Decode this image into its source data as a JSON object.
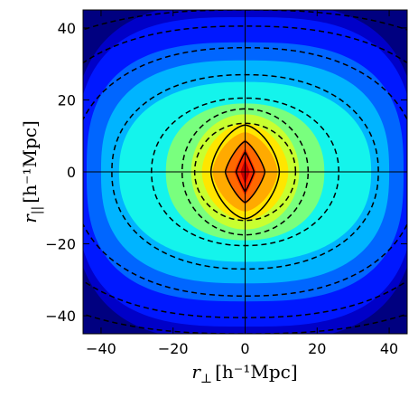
{
  "chart_data": {
    "type": "contour",
    "title": "",
    "x_range": [
      -45,
      45
    ],
    "y_range": [
      -45,
      45
    ],
    "x_ticks": [
      -40,
      -20,
      0,
      20,
      40
    ],
    "y_ticks": [
      -40,
      -20,
      0,
      20,
      40
    ],
    "x_tick_labels": [
      "−40",
      "−20",
      "0",
      "20",
      "40"
    ],
    "y_tick_labels": [
      "−40",
      "−20",
      "0",
      "20",
      "40"
    ],
    "xlabel": {
      "symbol": "r",
      "subscript": "⊥",
      "units": "[h⁻¹Mpc]"
    },
    "ylabel": {
      "symbol": "r",
      "subscript": "||",
      "units": "[h⁻¹Mpc]"
    },
    "filled_levels": [
      {
        "level": 1,
        "color": "#0000c8",
        "x_extent": 48,
        "y_extent": 47,
        "shape_exponent": 3.0
      },
      {
        "level": 2,
        "color": "#0018ff",
        "x_extent": 47,
        "y_extent": 43,
        "shape_exponent": 3.0
      },
      {
        "level": 3,
        "color": "#0066ff",
        "x_extent": 44,
        "y_extent": 36,
        "shape_exponent": 2.8
      },
      {
        "level": 4,
        "color": "#00b4ff",
        "x_extent": 40,
        "y_extent": 31,
        "shape_exponent": 2.6
      },
      {
        "level": 5,
        "color": "#14f4ec",
        "x_extent": 35,
        "y_extent": 25,
        "shape_exponent": 2.3
      },
      {
        "level": 6,
        "color": "#79ff7e",
        "x_extent": 22,
        "y_extent": 19,
        "shape_exponent": 2.2
      },
      {
        "level": 7,
        "color": "#c8ff30",
        "x_extent": 15,
        "y_extent": 16,
        "shape_exponent": 2.0
      },
      {
        "level": 8,
        "color": "#ffe600",
        "x_extent": 12,
        "y_extent": 13.5,
        "shape_exponent": 1.8
      },
      {
        "level": 9,
        "color": "#ffaa00",
        "x_extent": 9,
        "y_extent": 11,
        "shape_exponent": 1.6
      },
      {
        "level": 10,
        "color": "#ff6800",
        "x_extent": 5.5,
        "y_extent": 9,
        "shape_exponent": 1.3
      },
      {
        "level": 11,
        "color": "#ff2a00",
        "x_extent": 3,
        "y_extent": 6.5,
        "shape_exponent": 1.1
      },
      {
        "level": 12,
        "color": "#c80000",
        "x_extent": 1.3,
        "y_extent": 3.5,
        "shape_exponent": 1.0
      }
    ],
    "solid_contours": [
      {
        "x_extent": 9.5,
        "y_extent": 13,
        "shape_exponent": 1.6
      },
      {
        "x_extent": 5.5,
        "y_extent": 8.5,
        "shape_exponent": 1.3
      },
      {
        "x_extent": 2.5,
        "y_extent": 5.5,
        "shape_exponent": 1.1
      }
    ],
    "dashed_contours": [
      {
        "x_extent": 14,
        "y_extent": 13.5,
        "shape_exponent": 2.0
      },
      {
        "x_extent": 17.5,
        "y_extent": 17.5,
        "shape_exponent": 2.0
      },
      {
        "x_extent": 26,
        "y_extent": 20.5,
        "shape_exponent": 2.1
      },
      {
        "x_extent": 37,
        "y_extent": 27,
        "shape_exponent": 2.2
      },
      {
        "x_extent": 48,
        "y_extent": 34.5,
        "shape_exponent": 2.3
      },
      {
        "x_extent": 60,
        "y_extent": 40.5,
        "shape_exponent": 2.4
      },
      {
        "x_extent": 75,
        "y_extent": 45,
        "shape_exponent": 2.5
      }
    ],
    "reference_lines": {
      "x": 0,
      "y": 0
    },
    "grid": false,
    "legend": "none"
  }
}
